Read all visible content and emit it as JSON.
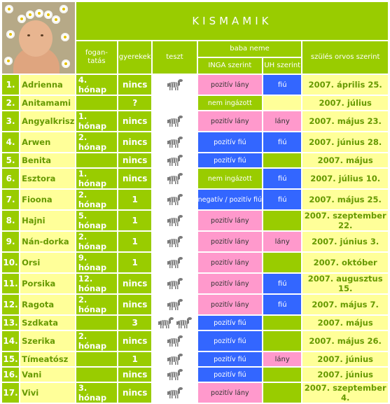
{
  "title": "KISMAMIK",
  "headers": {
    "fogantatas": "fogan-\ntatás",
    "gyerekek": "gyerekek",
    "teszt": "teszt",
    "baba_neme": "baba neme",
    "inga": "INGA szerint",
    "uh": "UH szerint",
    "szules": "szülés orvos szerint"
  },
  "colors": {
    "green": "#99cc00",
    "pale_yellow": "#ffff99",
    "pink": "#ff99cc",
    "blue": "#3366ff",
    "text_green": "#669900"
  },
  "rows": [
    {
      "num": "1.",
      "name": "Adrienna",
      "fog": "4. hónap",
      "kids": "nincs",
      "tests": 1,
      "inga": "pozitív lány",
      "inga_color": "pink",
      "uh": "fiú",
      "uh_color": "blue",
      "date": "2007. április 25."
    },
    {
      "num": "2.",
      "name": "Anitamami",
      "fog": "",
      "kids": "?",
      "tests": 0,
      "inga": "nem ingázott",
      "inga_color": "ltgreen",
      "uh": "",
      "uh_color": "pale",
      "date": "2007. július"
    },
    {
      "num": "3.",
      "name": "Angyalkrisz",
      "fog": "1. hónap",
      "kids": "nincs",
      "tests": 1,
      "inga": "pozitív lány",
      "inga_color": "pink",
      "uh": "lány",
      "uh_color": "pink",
      "date": "2007. május 23."
    },
    {
      "num": "4.",
      "name": "Arwen",
      "fog": "2. hónap",
      "kids": "nincs",
      "tests": 1,
      "inga": "pozitív fiú",
      "inga_color": "blue",
      "uh": "fiú",
      "uh_color": "blue",
      "date": "2007. június 28."
    },
    {
      "num": "5.",
      "name": "Benita",
      "fog": "",
      "kids": "nincs",
      "tests": 1,
      "inga": "pozitív fiú",
      "inga_color": "blue",
      "uh": "",
      "uh_color": "ltgreen",
      "date": "2007. május"
    },
    {
      "num": "6.",
      "name": "Esztora",
      "fog": "1. hónap",
      "kids": "nincs",
      "tests": 1,
      "inga": "nem ingázott",
      "inga_color": "ltgreen",
      "uh": "fiú",
      "uh_color": "blue",
      "date": "2007. július 10."
    },
    {
      "num": "7.",
      "name": "Fioona",
      "fog": "2. hónap",
      "kids": "1",
      "tests": 1,
      "inga": "negatív / pozitív fiú",
      "inga_color": "blue",
      "uh": "fiú",
      "uh_color": "blue",
      "date": "2007. május 25."
    },
    {
      "num": "8.",
      "name": "Hajni",
      "fog": "5. hónap",
      "kids": "1",
      "tests": 1,
      "inga": "pozitív lány",
      "inga_color": "pink",
      "uh": "",
      "uh_color": "ltgreen",
      "date": "2007. szeptember 22."
    },
    {
      "num": "9.",
      "name": "Nán-dorka",
      "fog": "2. hónap",
      "kids": "1",
      "tests": 1,
      "inga": "pozitív lány",
      "inga_color": "pink",
      "uh": "lány",
      "uh_color": "pink",
      "date": "2007. június 3."
    },
    {
      "num": "10.",
      "name": "Orsi",
      "fog": "9. hónap",
      "kids": "1",
      "tests": 1,
      "inga": "pozitív lány",
      "inga_color": "pink",
      "uh": "",
      "uh_color": "ltgreen",
      "date": "2007. október"
    },
    {
      "num": "11.",
      "name": "Porsika",
      "fog": "12. hónap",
      "kids": "nincs",
      "tests": 1,
      "inga": "pozitív lány",
      "inga_color": "pink",
      "uh": "fiú",
      "uh_color": "blue",
      "date": "2007. augusztus 15."
    },
    {
      "num": "12.",
      "name": "Ragota",
      "fog": "2. hónap",
      "kids": "nincs",
      "tests": 1,
      "inga": "pozitív lány",
      "inga_color": "pink",
      "uh": "fiú",
      "uh_color": "blue",
      "date": "2007. május 7."
    },
    {
      "num": "13.",
      "name": "Szdkata",
      "fog": "",
      "kids": "3",
      "tests": 2,
      "inga": "pozitív fiú",
      "inga_color": "blue",
      "uh": "",
      "uh_color": "ltgreen",
      "date": "2007. május"
    },
    {
      "num": "14.",
      "name": "Szerika",
      "fog": "2. hónap",
      "kids": "nincs",
      "tests": 1,
      "inga": "pozitív fiú",
      "inga_color": "blue",
      "uh": "",
      "uh_color": "ltgreen",
      "date": "2007. május 26."
    },
    {
      "num": "15.",
      "name": "Tímeatósz",
      "fog": "",
      "kids": "1",
      "tests": 1,
      "inga": "pozitív fiú",
      "inga_color": "blue",
      "uh": "lány",
      "uh_color": "pink",
      "date": "2007. június"
    },
    {
      "num": "16.",
      "name": "Vani",
      "fog": "",
      "kids": "nincs",
      "tests": 1,
      "inga": "pozitív fiú",
      "inga_color": "blue",
      "uh": "",
      "uh_color": "ltgreen",
      "date": "2007. június"
    },
    {
      "num": "17.",
      "name": "Vivi",
      "fog": "3. hónap",
      "kids": "nincs",
      "tests": 1,
      "inga": "pozitív lány",
      "inga_color": "pink",
      "uh": "",
      "uh_color": "ltgreen",
      "date": "2007. szeptember 4."
    }
  ],
  "icons": {
    "photo": "baby-with-daisies-photo",
    "teszt": "zebra-icon"
  }
}
